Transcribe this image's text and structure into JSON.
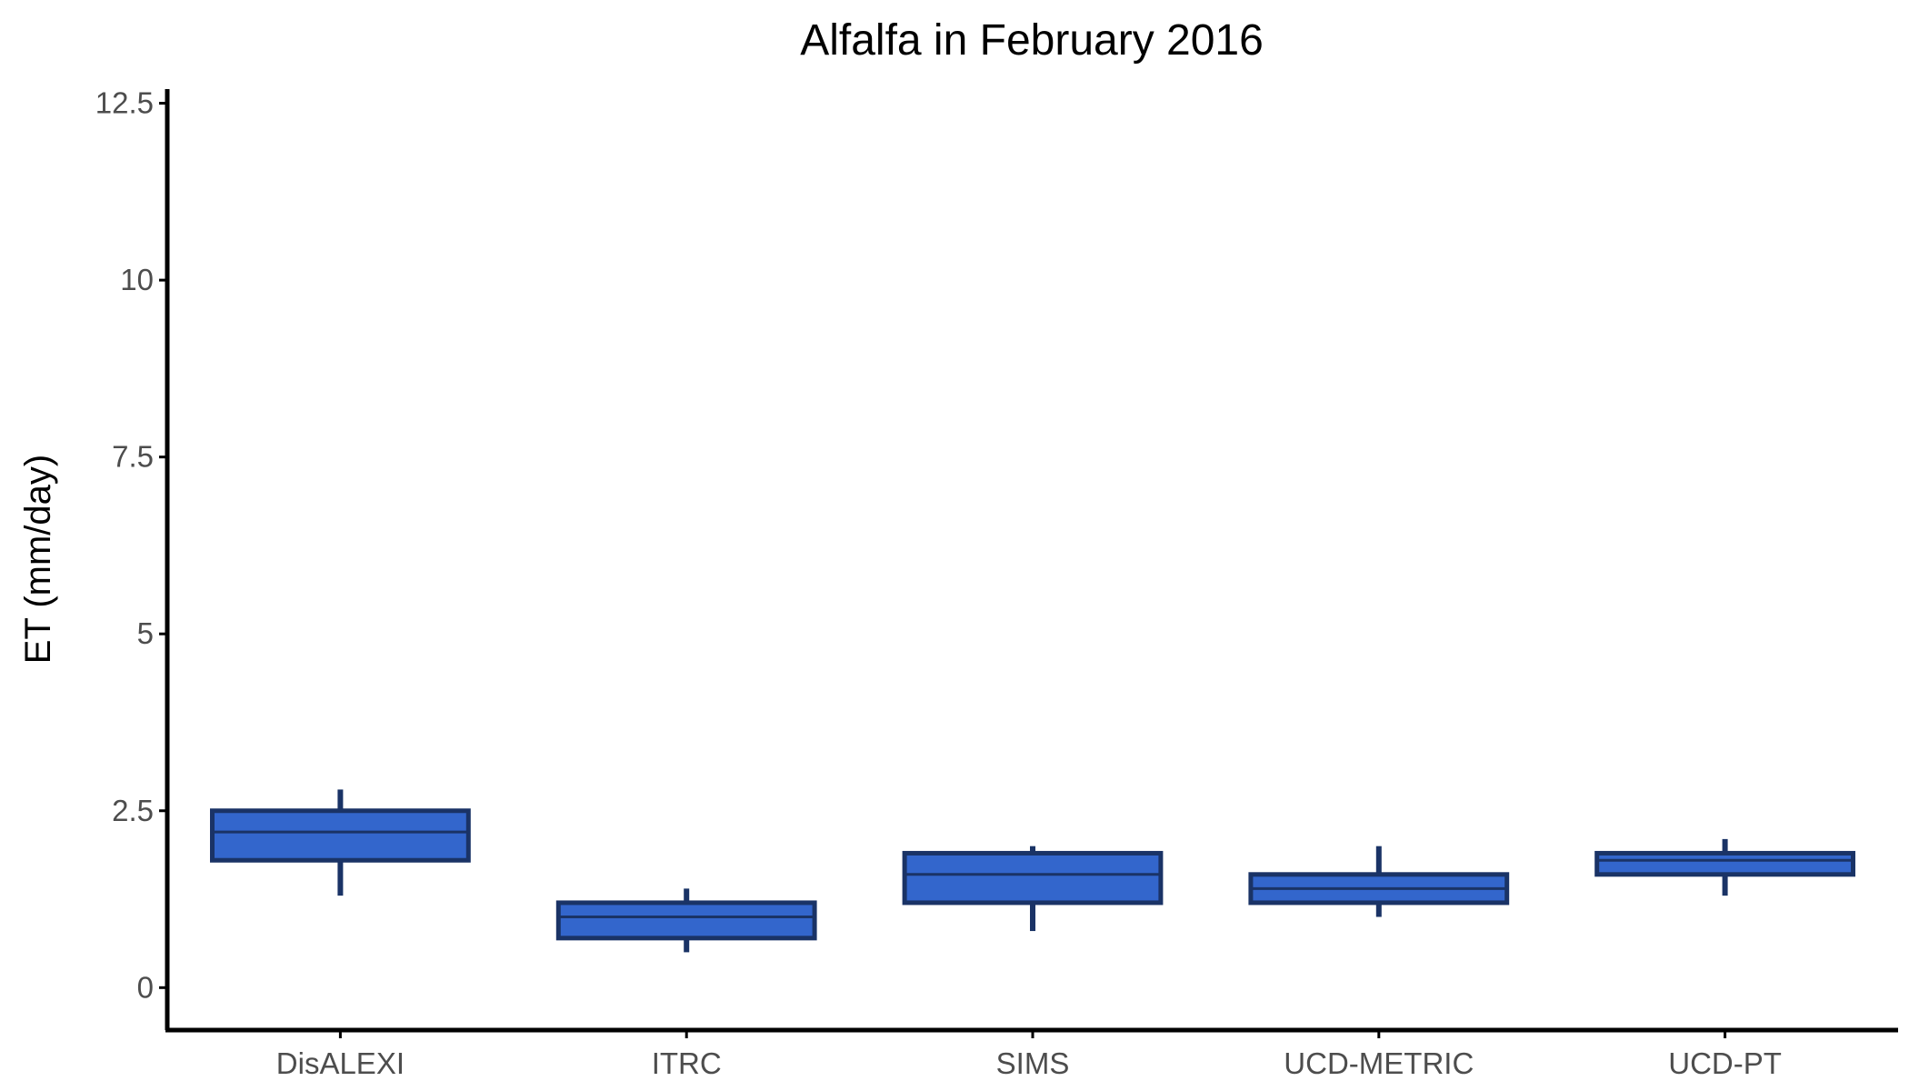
{
  "chart_data": {
    "type": "box",
    "title": "Alfalfa in February 2016",
    "xlabel": "",
    "ylabel": "ET (mm/day)",
    "ylim": [
      -0.6,
      12.7
    ],
    "yticks": [
      0,
      2.5,
      5,
      7.5,
      10,
      12.5
    ],
    "ytick_labels": [
      "0",
      "2.5",
      "5",
      "7.5",
      "10",
      "12.5"
    ],
    "categories": [
      "DisALEXI",
      "ITRC",
      "SIMS",
      "UCD-METRIC",
      "UCD-PT"
    ],
    "boxes": [
      {
        "min": 1.3,
        "q1": 1.8,
        "median": 2.2,
        "q3": 2.5,
        "max": 2.8
      },
      {
        "min": 0.5,
        "q1": 0.7,
        "median": 1.0,
        "q3": 1.2,
        "max": 1.4
      },
      {
        "min": 0.8,
        "q1": 1.2,
        "median": 1.6,
        "q3": 1.9,
        "max": 2.0
      },
      {
        "min": 1.0,
        "q1": 1.2,
        "median": 1.4,
        "q3": 1.6,
        "max": 2.0
      },
      {
        "min": 1.3,
        "q1": 1.6,
        "median": 1.8,
        "q3": 1.9,
        "max": 2.1
      }
    ],
    "box_fill": "#3366cc",
    "box_stroke": "#1a3366",
    "grid": false,
    "legend": "none"
  }
}
